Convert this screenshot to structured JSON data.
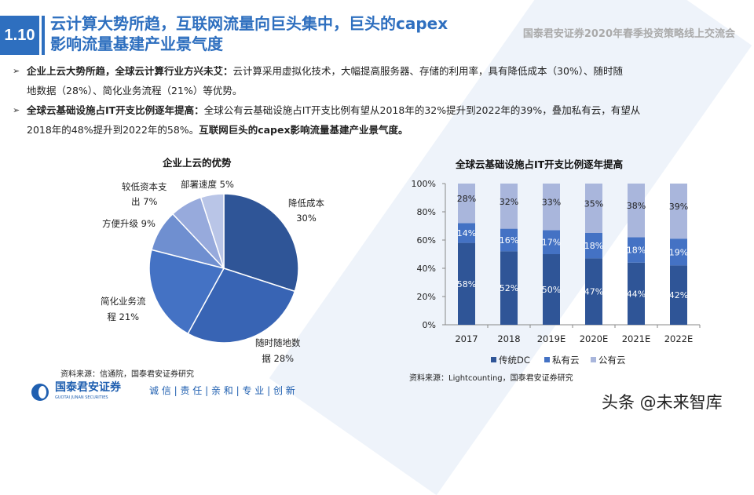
{
  "header": {
    "section_number": "1.10",
    "title_line1": "云计算大势所趋，互联网流量向巨头集中，巨头的capex",
    "title_line2": "影响流量基建产业景气度",
    "subtitle": "国泰君安证券2020年春季投资策略线上交流会"
  },
  "bullets": [
    {
      "bold": "企业上云大势所趋，全球云计算行业方兴未艾：",
      "text_line1": "云计算采用虚拟化技术，大幅提高服务器、存储的利用率，具有降低成本（30%）、随时随",
      "text_line2": "地数据（28%）、简化业务流程（21%）等优势。"
    },
    {
      "bold": "全球云基础设施占IT开支比例逐年提高：",
      "text_line1": "全球公有云基础设施占IT开支比例有望从2018年的32%提升到2022年的39%，叠加私有云，有望从",
      "text_line2": "2018年的48%提升到2022年的58%。",
      "bold2": "互联网巨头的capex影响流量基建产业景气度。"
    }
  ],
  "chart_data": [
    {
      "type": "pie",
      "title": "企业上云的优势",
      "slices": [
        {
          "label_line1": "降低成本",
          "label_line2": "30%",
          "value": 30,
          "color": "#2f5597"
        },
        {
          "label_line1": "随时随地数",
          "label_line2": "据 28%",
          "value": 28,
          "color": "#3864b4"
        },
        {
          "label_line1": "简化业务流",
          "label_line2": "程 21%",
          "value": 21,
          "color": "#4472c4"
        },
        {
          "label_line1": "方便升级 9%",
          "label_line2": "",
          "value": 9,
          "color": "#6f8fd0"
        },
        {
          "label_line1": "较低资本支",
          "label_line2": "出 7%",
          "value": 7,
          "color": "#97aadc"
        },
        {
          "label_line1": "部署速度 5%",
          "label_line2": "",
          "value": 5,
          "color": "#b9c5e7"
        }
      ],
      "source": "资料来源：信通院，国泰君安证券研究"
    },
    {
      "type": "bar",
      "stacked": true,
      "title": "全球云基础设施占IT开支比例逐年提高",
      "categories": [
        "2017",
        "2018",
        "2019E",
        "2020E",
        "2021E",
        "2022E"
      ],
      "series": [
        {
          "name": "传统DC",
          "values": [
            58,
            52,
            50,
            47,
            44,
            42
          ],
          "color": "#2f5597"
        },
        {
          "name": "私有云",
          "values": [
            14,
            16,
            17,
            18,
            18,
            19
          ],
          "color": "#4472c4"
        },
        {
          "name": "公有云",
          "values": [
            28,
            32,
            33,
            35,
            38,
            39
          ],
          "color": "#a9b6dc"
        }
      ],
      "yticks": [
        "0%",
        "20%",
        "40%",
        "60%",
        "80%",
        "100%"
      ],
      "ylim": [
        0,
        100
      ],
      "legend": "bottom",
      "source": "资料来源：Lightcounting，国泰君安证券研究"
    }
  ],
  "footer": {
    "logo_cn": "国泰君安证券",
    "logo_en": "GUOTAI JUNAN SECURITIES",
    "motto": "诚 信 | 责 任 | 亲 和 | 专 业 | 创 新",
    "watermark": "头条 @未来智库"
  }
}
